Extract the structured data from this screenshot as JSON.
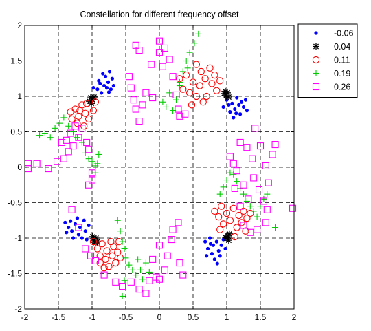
{
  "chart_data": {
    "type": "scatter",
    "title": "Constellation for different frequency offset",
    "xlabel": "",
    "ylabel": "",
    "xlim": [
      -2,
      2
    ],
    "ylim": [
      -2,
      2
    ],
    "xticks": [
      "-2",
      "-1.5",
      "-1",
      "-0.5",
      "0",
      "0.5",
      "1",
      "1.5",
      "2"
    ],
    "yticks": [
      "2",
      "1.5",
      "1",
      "0.5",
      "0",
      "-0.5",
      "-1",
      "-1.5",
      "-2"
    ],
    "grid": true,
    "legend_position": "outside-top-right",
    "series": [
      {
        "name": "-0.06",
        "marker": "dot",
        "color": "#0000ff",
        "points": [
          [
            -0.92,
            1.1
          ],
          [
            -0.88,
            1.18
          ],
          [
            -0.86,
            1.05
          ],
          [
            -0.82,
            1.15
          ],
          [
            -0.8,
            1.28
          ],
          [
            -0.78,
            1.12
          ],
          [
            -0.76,
            1.2
          ],
          [
            -0.74,
            1.35
          ],
          [
            -0.72,
            1.1
          ],
          [
            -0.7,
            1.25
          ],
          [
            -0.9,
            1.22
          ],
          [
            -0.84,
            1.32
          ],
          [
            -0.98,
            1.12
          ],
          [
            -0.68,
            1.15
          ],
          [
            -0.75,
            1.06
          ],
          [
            0.95,
            0.85
          ],
          [
            1.0,
            0.95
          ],
          [
            1.05,
            0.78
          ],
          [
            1.08,
            0.9
          ],
          [
            1.12,
            0.82
          ],
          [
            1.15,
            0.98
          ],
          [
            1.18,
            0.88
          ],
          [
            1.2,
            0.75
          ],
          [
            1.22,
            0.92
          ],
          [
            1.25,
            0.85
          ],
          [
            1.28,
            0.95
          ],
          [
            1.1,
            0.7
          ],
          [
            1.03,
            0.88
          ],
          [
            1.14,
            0.76
          ],
          [
            1.3,
            0.8
          ],
          [
            -1.4,
            -0.78
          ],
          [
            -1.35,
            -0.85
          ],
          [
            -1.3,
            -0.9
          ],
          [
            -1.25,
            -0.8
          ],
          [
            -1.2,
            -0.95
          ],
          [
            -1.18,
            -0.85
          ],
          [
            -1.15,
            -1.0
          ],
          [
            -1.12,
            -0.75
          ],
          [
            -1.1,
            -0.9
          ],
          [
            -1.05,
            -0.82
          ],
          [
            -1.28,
            -1.0
          ],
          [
            -1.22,
            -0.72
          ],
          [
            -1.38,
            -0.92
          ],
          [
            -1.08,
            -1.02
          ],
          [
            -1.32,
            -0.76
          ],
          [
            0.68,
            -1.05
          ],
          [
            0.72,
            -1.15
          ],
          [
            0.75,
            -1.0
          ],
          [
            0.78,
            -1.22
          ],
          [
            0.8,
            -1.1
          ],
          [
            0.82,
            -1.3
          ],
          [
            0.85,
            -1.05
          ],
          [
            0.88,
            -1.18
          ],
          [
            0.9,
            -1.25
          ],
          [
            0.92,
            -1.1
          ],
          [
            0.95,
            -1.02
          ],
          [
            0.7,
            -1.25
          ],
          [
            0.86,
            -1.36
          ],
          [
            0.98,
            -1.15
          ],
          [
            0.76,
            -1.08
          ]
        ]
      },
      {
        "name": "0.04",
        "marker": "star",
        "color": "#000000",
        "points": [
          [
            -1.02,
            0.98
          ],
          [
            -0.99,
            0.95
          ],
          [
            -1.04,
            0.93
          ],
          [
            -0.97,
            0.99
          ],
          [
            -1.01,
            0.9
          ],
          [
            0.96,
            1.04
          ],
          [
            0.99,
            1.01
          ],
          [
            1.01,
            1.05
          ],
          [
            1.03,
            0.99
          ],
          [
            0.98,
            1.07
          ],
          [
            -0.94,
            -1.0
          ],
          [
            -0.97,
            -1.03
          ],
          [
            -0.92,
            -1.05
          ],
          [
            -0.99,
            -0.98
          ],
          [
            -0.95,
            -1.07
          ],
          [
            1.02,
            -0.97
          ],
          [
            1.0,
            -1.0
          ],
          [
            1.04,
            -0.94
          ],
          [
            0.98,
            -0.99
          ],
          [
            1.03,
            -1.03
          ]
        ]
      },
      {
        "name": "0.11",
        "marker": "circle",
        "color": "#ff0000",
        "points": [
          [
            -1.32,
            0.78
          ],
          [
            -1.25,
            0.82
          ],
          [
            -1.2,
            0.72
          ],
          [
            -1.15,
            0.88
          ],
          [
            -1.1,
            0.76
          ],
          [
            -1.08,
            0.9
          ],
          [
            -1.05,
            0.68
          ],
          [
            -0.98,
            0.8
          ],
          [
            -0.95,
            0.92
          ],
          [
            -1.22,
            0.62
          ],
          [
            -1.12,
            0.58
          ],
          [
            -1.3,
            0.68
          ],
          [
            -1.18,
            0.8
          ],
          [
            0.3,
            1.25
          ],
          [
            0.35,
            1.1
          ],
          [
            0.4,
            1.3
          ],
          [
            0.45,
            1.05
          ],
          [
            0.5,
            1.2
          ],
          [
            0.55,
            1.45
          ],
          [
            0.6,
            1.15
          ],
          [
            0.62,
            1.35
          ],
          [
            0.68,
            1.25
          ],
          [
            0.7,
            1.0
          ],
          [
            0.75,
            1.4
          ],
          [
            0.78,
            1.18
          ],
          [
            0.82,
            1.3
          ],
          [
            0.85,
            1.08
          ],
          [
            0.9,
            1.22
          ],
          [
            0.65,
            0.92
          ],
          [
            0.55,
            1.0
          ],
          [
            0.48,
            0.88
          ],
          [
            -0.98,
            -1.05
          ],
          [
            -0.92,
            -1.15
          ],
          [
            -0.88,
            -1.25
          ],
          [
            -0.85,
            -1.08
          ],
          [
            -0.8,
            -1.3
          ],
          [
            -0.78,
            -1.18
          ],
          [
            -0.75,
            -1.4
          ],
          [
            -0.72,
            -1.05
          ],
          [
            -0.7,
            -1.25
          ],
          [
            -0.68,
            -1.12
          ],
          [
            -0.65,
            -1.35
          ],
          [
            -0.62,
            -1.2
          ],
          [
            -0.6,
            -1.05
          ],
          [
            -0.58,
            -1.28
          ],
          [
            -0.82,
            -1.42
          ],
          [
            -0.88,
            -1.35
          ],
          [
            0.82,
            -0.62
          ],
          [
            0.88,
            -0.7
          ],
          [
            0.92,
            -0.55
          ],
          [
            0.95,
            -0.8
          ],
          [
            1.0,
            -0.65
          ],
          [
            1.05,
            -0.75
          ],
          [
            1.1,
            -0.58
          ],
          [
            1.15,
            -0.85
          ],
          [
            1.18,
            -0.68
          ],
          [
            1.22,
            -0.78
          ],
          [
            1.25,
            -0.62
          ],
          [
            1.3,
            -0.72
          ],
          [
            1.28,
            -0.9
          ],
          [
            0.9,
            -0.88
          ],
          [
            1.12,
            -0.98
          ],
          [
            1.35,
            -0.65
          ]
        ]
      },
      {
        "name": "0.19",
        "marker": "plus",
        "color": "#00cc00",
        "points": [
          [
            -1.78,
            0.45
          ],
          [
            -1.7,
            0.48
          ],
          [
            -1.62,
            0.42
          ],
          [
            -1.55,
            0.55
          ],
          [
            -1.48,
            0.62
          ],
          [
            -1.42,
            0.7
          ],
          [
            -1.35,
            0.58
          ],
          [
            -1.28,
            0.5
          ],
          [
            -1.22,
            0.42
          ],
          [
            -1.15,
            0.35
          ],
          [
            -1.1,
            0.2
          ],
          [
            -1.05,
            0.12
          ],
          [
            -1.0,
            0.08
          ],
          [
            -0.95,
            0.02
          ],
          [
            -0.9,
            0.18
          ],
          [
            -0.95,
            -0.08
          ],
          [
            -0.92,
            0.05
          ],
          [
            0.05,
            0.92
          ],
          [
            0.1,
            0.85
          ],
          [
            0.15,
            1.05
          ],
          [
            0.2,
            0.8
          ],
          [
            0.25,
            0.95
          ],
          [
            0.3,
            1.15
          ],
          [
            0.35,
            1.35
          ],
          [
            0.4,
            1.5
          ],
          [
            0.45,
            1.62
          ],
          [
            0.52,
            1.75
          ],
          [
            0.58,
            1.88
          ],
          [
            0.42,
            1.4
          ],
          [
            0.3,
            1.2
          ],
          [
            -0.62,
            -0.75
          ],
          [
            -0.58,
            -0.9
          ],
          [
            -0.55,
            -1.05
          ],
          [
            -0.52,
            -1.15
          ],
          [
            -0.5,
            -1.28
          ],
          [
            -0.45,
            -1.38
          ],
          [
            -0.4,
            -1.45
          ],
          [
            -0.35,
            -1.52
          ],
          [
            -0.32,
            -1.3
          ],
          [
            -0.28,
            -1.45
          ],
          [
            -0.25,
            -1.58
          ],
          [
            -0.2,
            -1.35
          ],
          [
            -0.15,
            -1.48
          ],
          [
            -0.55,
            -1.82
          ],
          [
            -0.52,
            -1.6
          ],
          [
            0.9,
            -0.38
          ],
          [
            0.95,
            -0.28
          ],
          [
            1.0,
            -0.18
          ],
          [
            1.05,
            -0.08
          ],
          [
            1.1,
            -0.1
          ],
          [
            1.15,
            -0.2
          ],
          [
            1.2,
            -0.3
          ],
          [
            1.25,
            -0.38
          ],
          [
            1.3,
            -0.48
          ],
          [
            1.35,
            -0.55
          ],
          [
            1.4,
            -0.62
          ],
          [
            1.45,
            -0.7
          ],
          [
            1.5,
            -0.55
          ],
          [
            1.55,
            -0.45
          ],
          [
            1.6,
            -0.38
          ],
          [
            1.72,
            -0.85
          ]
        ]
      },
      {
        "name": "0.26",
        "marker": "square",
        "color": "#ff00ff",
        "points": [
          [
            -1.95,
            0.05
          ],
          [
            -1.95,
            -0.02
          ],
          [
            -1.82,
            0.05
          ],
          [
            -1.65,
            -0.02
          ],
          [
            -1.52,
            0.08
          ],
          [
            -1.42,
            0.12
          ],
          [
            -1.35,
            0.22
          ],
          [
            -1.38,
            0.38
          ],
          [
            -1.45,
            0.35
          ],
          [
            -1.28,
            0.3
          ],
          [
            -1.32,
            0.48
          ],
          [
            -1.25,
            0.58
          ],
          [
            -1.15,
            0.55
          ],
          [
            -1.2,
            0.42
          ],
          [
            -1.08,
            0.35
          ],
          [
            -1.05,
            0.25
          ],
          [
            -1.0,
            -0.08
          ],
          [
            -1.0,
            -0.18
          ],
          [
            -1.05,
            -0.25
          ],
          [
            -0.45,
            1.28
          ],
          [
            -0.42,
            1.12
          ],
          [
            -0.38,
            0.95
          ],
          [
            -0.35,
            0.82
          ],
          [
            -0.3,
            0.65
          ],
          [
            -0.25,
            0.88
          ],
          [
            -0.2,
            1.05
          ],
          [
            -0.12,
            1.45
          ],
          [
            -0.1,
            0.98
          ],
          [
            0.0,
            1.78
          ],
          [
            0.0,
            1.62
          ],
          [
            0.05,
            1.42
          ],
          [
            0.08,
            1.68
          ],
          [
            0.15,
            1.52
          ],
          [
            0.2,
            1.28
          ],
          [
            0.25,
            1.02
          ],
          [
            0.28,
            0.82
          ],
          [
            0.3,
            0.72
          ],
          [
            0.38,
            0.75
          ],
          [
            -0.35,
            1.72
          ],
          [
            -0.3,
            1.65
          ],
          [
            -1.3,
            -0.6
          ],
          [
            -1.2,
            -0.85
          ],
          [
            -1.1,
            -1.15
          ],
          [
            -1.02,
            -1.25
          ],
          [
            -0.95,
            -1.32
          ],
          [
            -0.82,
            -1.52
          ],
          [
            -0.65,
            -1.62
          ],
          [
            -0.55,
            -1.68
          ],
          [
            -0.42,
            -1.62
          ],
          [
            -0.3,
            -1.72
          ],
          [
            -0.2,
            -1.78
          ],
          [
            -0.15,
            -1.6
          ],
          [
            -0.05,
            -1.55
          ],
          [
            0.0,
            -1.58
          ],
          [
            0.08,
            -1.45
          ],
          [
            0.12,
            -1.25
          ],
          [
            0.18,
            -1.02
          ],
          [
            0.2,
            -0.88
          ],
          [
            0.28,
            -0.78
          ],
          [
            0.3,
            -1.35
          ],
          [
            0.35,
            -1.52
          ],
          [
            -0.1,
            -1.3
          ],
          [
            0.0,
            -1.1
          ],
          [
            1.05,
            0.15
          ],
          [
            1.1,
            0.05
          ],
          [
            1.15,
            -0.05
          ],
          [
            1.2,
            0.35
          ],
          [
            1.25,
            -0.25
          ],
          [
            1.3,
            0.28
          ],
          [
            1.32,
            -0.45
          ],
          [
            1.38,
            0.12
          ],
          [
            1.4,
            -0.15
          ],
          [
            1.42,
            0.55
          ],
          [
            1.48,
            -0.32
          ],
          [
            1.5,
            0.3
          ],
          [
            1.55,
            -0.48
          ],
          [
            1.58,
            0.02
          ],
          [
            1.62,
            -0.22
          ],
          [
            1.68,
            0.18
          ],
          [
            1.72,
            0.32
          ],
          [
            1.58,
            -0.78
          ],
          [
            1.45,
            -0.88
          ],
          [
            1.35,
            -0.92
          ],
          [
            1.25,
            -0.82
          ],
          [
            1.2,
            -0.55
          ],
          [
            1.12,
            -0.3
          ],
          [
            1.6,
            -0.6
          ],
          [
            1.98,
            -0.58
          ]
        ]
      }
    ]
  }
}
